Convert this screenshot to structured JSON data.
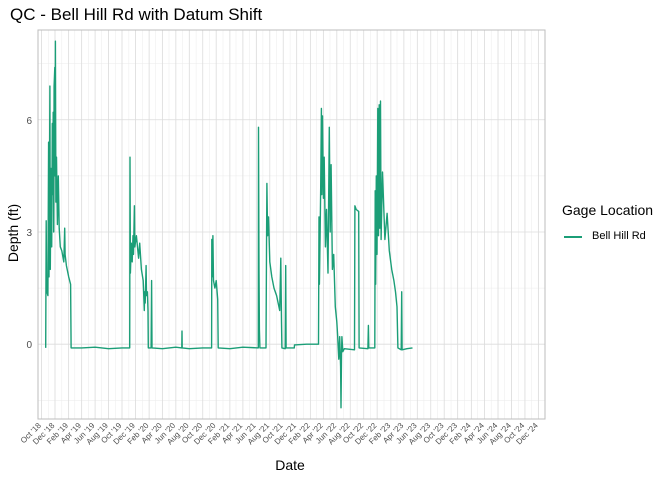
{
  "chart_data": {
    "type": "line",
    "title": "QC - Bell Hill Rd with Datum Shift",
    "xlabel": "Date",
    "ylabel": "Depth (ft)",
    "x_range": [
      "2018-09-15",
      "2024-12-31"
    ],
    "ylim": [
      -2.0,
      8.4
    ],
    "y_ticks": [
      0,
      3,
      6
    ],
    "x_ticks": [
      "Oct '18",
      "Dec '18",
      "Feb '19",
      "Apr '19",
      "Jun '19",
      "Aug '19",
      "Oct '19",
      "Dec '19",
      "Feb '20",
      "Apr '20",
      "Jun '20",
      "Aug '20",
      "Oct '20",
      "Dec '20",
      "Feb '21",
      "Apr '21",
      "Jun '21",
      "Aug '21",
      "Oct '21",
      "Dec '21",
      "Feb '22",
      "Apr '22",
      "Jun '22",
      "Aug '22",
      "Oct '22",
      "Dec '22",
      "Feb '23",
      "Apr '23",
      "Jun '23",
      "Aug '23",
      "Oct '23",
      "Dec '23",
      "Feb '24",
      "Apr '24",
      "Jun '24",
      "Aug '24",
      "Oct '24",
      "Dec '24"
    ],
    "grid": true,
    "legend": {
      "title": "Gage Location",
      "position": "right"
    },
    "series": [
      {
        "name": "Bell Hill Rd",
        "color": "#1b9e77",
        "points": [
          [
            "2018-10-20",
            -0.1
          ],
          [
            "2018-10-22",
            3.3
          ],
          [
            "2018-10-24",
            1.6
          ],
          [
            "2018-10-26",
            1.4
          ],
          [
            "2018-10-30",
            1.3
          ],
          [
            "2018-11-02",
            5.4
          ],
          [
            "2018-11-04",
            1.8
          ],
          [
            "2018-11-06",
            4.5
          ],
          [
            "2018-11-08",
            6.9
          ],
          [
            "2018-11-10",
            2.0
          ],
          [
            "2018-11-13",
            4.7
          ],
          [
            "2018-11-16",
            2.6
          ],
          [
            "2018-11-19",
            5.9
          ],
          [
            "2018-11-21",
            4.0
          ],
          [
            "2018-11-23",
            6.2
          ],
          [
            "2018-11-25",
            3.0
          ],
          [
            "2018-11-27",
            6.9
          ],
          [
            "2018-11-30",
            7.4
          ],
          [
            "2018-12-01",
            4.5
          ],
          [
            "2018-12-03",
            8.1
          ],
          [
            "2018-12-05",
            3.8
          ],
          [
            "2018-12-08",
            5.0
          ],
          [
            "2018-12-12",
            3.2
          ],
          [
            "2018-12-16",
            4.5
          ],
          [
            "2018-12-20",
            3.1
          ],
          [
            "2018-12-25",
            2.6
          ],
          [
            "2019-01-01",
            2.5
          ],
          [
            "2019-01-10",
            2.2
          ],
          [
            "2019-01-14",
            3.1
          ],
          [
            "2019-01-16",
            2.4
          ],
          [
            "2019-01-22",
            2.1
          ],
          [
            "2019-02-01",
            1.8
          ],
          [
            "2019-02-10",
            1.6
          ],
          [
            "2019-02-12",
            -0.1
          ],
          [
            "2019-04-01",
            -0.1
          ],
          [
            "2019-06-01",
            -0.08
          ],
          [
            "2019-08-01",
            -0.12
          ],
          [
            "2019-10-01",
            -0.1
          ],
          [
            "2019-11-05",
            -0.1
          ],
          [
            "2019-11-06",
            5.0
          ],
          [
            "2019-11-08",
            1.9
          ],
          [
            "2019-11-12",
            2.7
          ],
          [
            "2019-11-16",
            2.2
          ],
          [
            "2019-11-20",
            2.9
          ],
          [
            "2019-11-22",
            2.4
          ],
          [
            "2019-11-26",
            3.7
          ],
          [
            "2019-11-28",
            2.6
          ],
          [
            "2019-12-05",
            2.9
          ],
          [
            "2019-12-15",
            2.3
          ],
          [
            "2019-12-20",
            2.7
          ],
          [
            "2019-12-28",
            2.0
          ],
          [
            "2020-01-05",
            1.7
          ],
          [
            "2020-01-10",
            0.9
          ],
          [
            "2020-01-12",
            1.4
          ],
          [
            "2020-01-14",
            1.1
          ],
          [
            "2020-01-18",
            2.1
          ],
          [
            "2020-01-20",
            1.3
          ],
          [
            "2020-01-24",
            1.4
          ],
          [
            "2020-01-27",
            0.9
          ],
          [
            "2020-01-28",
            -0.1
          ],
          [
            "2020-02-10",
            -0.1
          ],
          [
            "2020-02-12",
            1.7
          ],
          [
            "2020-02-14",
            -0.1
          ],
          [
            "2020-04-01",
            -0.12
          ],
          [
            "2020-06-01",
            -0.08
          ],
          [
            "2020-06-28",
            -0.1
          ],
          [
            "2020-06-29",
            0.35
          ],
          [
            "2020-06-30",
            -0.1
          ],
          [
            "2020-08-01",
            -0.12
          ],
          [
            "2020-10-01",
            -0.1
          ],
          [
            "2020-11-10",
            -0.1
          ],
          [
            "2020-11-11",
            2.8
          ],
          [
            "2020-11-13",
            1.8
          ],
          [
            "2020-11-16",
            2.9
          ],
          [
            "2020-11-19",
            1.7
          ],
          [
            "2020-11-25",
            1.5
          ],
          [
            "2020-12-01",
            1.7
          ],
          [
            "2020-12-08",
            1.2
          ],
          [
            "2020-12-10",
            -0.1
          ],
          [
            "2021-02-01",
            -0.12
          ],
          [
            "2021-04-01",
            -0.08
          ],
          [
            "2021-06-10",
            -0.1
          ],
          [
            "2021-06-11",
            5.8
          ],
          [
            "2021-06-13",
            2.0
          ],
          [
            "2021-06-15",
            0.4
          ],
          [
            "2021-06-17",
            -0.1
          ],
          [
            "2021-07-15",
            -0.1
          ],
          [
            "2021-07-17",
            2.5
          ],
          [
            "2021-07-19",
            4.3
          ],
          [
            "2021-07-22",
            2.9
          ],
          [
            "2021-07-26",
            3.4
          ],
          [
            "2021-08-01",
            2.2
          ],
          [
            "2021-08-10",
            1.8
          ],
          [
            "2021-08-20",
            1.5
          ],
          [
            "2021-09-01",
            1.3
          ],
          [
            "2021-09-15",
            0.9
          ],
          [
            "2021-09-20",
            2.3
          ],
          [
            "2021-09-23",
            0.6
          ],
          [
            "2021-09-25",
            -0.1
          ],
          [
            "2021-10-10",
            -0.12
          ],
          [
            "2021-10-12",
            2.1
          ],
          [
            "2021-10-14",
            -0.1
          ],
          [
            "2021-11-20",
            -0.1
          ],
          [
            "2021-11-21",
            -0.02
          ],
          [
            "2022-01-15",
            0.0
          ],
          [
            "2022-03-10",
            0.0
          ],
          [
            "2022-03-12",
            3.4
          ],
          [
            "2022-03-14",
            1.6
          ],
          [
            "2022-03-17",
            2.9
          ],
          [
            "2022-03-20",
            4.2
          ],
          [
            "2022-03-23",
            6.3
          ],
          [
            "2022-03-25",
            4.0
          ],
          [
            "2022-03-28",
            6.1
          ],
          [
            "2022-04-01",
            3.9
          ],
          [
            "2022-04-05",
            5.0
          ],
          [
            "2022-04-10",
            2.6
          ],
          [
            "2022-04-15",
            3.6
          ],
          [
            "2022-04-22",
            1.9
          ],
          [
            "2022-04-28",
            5.8
          ],
          [
            "2022-05-02",
            3.0
          ],
          [
            "2022-05-06",
            4.8
          ],
          [
            "2022-05-12",
            2.0
          ],
          [
            "2022-05-18",
            2.4
          ],
          [
            "2022-05-25",
            1.0
          ],
          [
            "2022-06-01",
            0.6
          ],
          [
            "2022-06-05",
            0.2
          ],
          [
            "2022-06-10",
            -0.4
          ],
          [
            "2022-06-14",
            0.2
          ],
          [
            "2022-06-18",
            -0.6
          ],
          [
            "2022-06-20",
            -1.7
          ],
          [
            "2022-06-22",
            -0.3
          ],
          [
            "2022-06-24",
            0.2
          ],
          [
            "2022-06-28",
            -0.2
          ],
          [
            "2022-07-05",
            -0.12
          ],
          [
            "2022-08-20",
            -0.15
          ],
          [
            "2022-08-22",
            3.7
          ],
          [
            "2022-08-28",
            3.6
          ],
          [
            "2022-09-08",
            3.55
          ],
          [
            "2022-09-10",
            -0.1
          ],
          [
            "2022-10-20",
            -0.12
          ],
          [
            "2022-10-22",
            0.5
          ],
          [
            "2022-10-24",
            -0.1
          ],
          [
            "2022-11-20",
            -0.1
          ],
          [
            "2022-11-22",
            4.1
          ],
          [
            "2022-11-24",
            1.6
          ],
          [
            "2022-11-27",
            4.5
          ],
          [
            "2022-11-30",
            2.4
          ],
          [
            "2022-12-04",
            6.3
          ],
          [
            "2022-12-07",
            2.9
          ],
          [
            "2022-12-10",
            6.4
          ],
          [
            "2022-12-13",
            3.1
          ],
          [
            "2022-12-16",
            6.5
          ],
          [
            "2022-12-19",
            2.8
          ],
          [
            "2022-12-25",
            4.6
          ],
          [
            "2023-01-05",
            2.8
          ],
          [
            "2023-01-15",
            3.5
          ],
          [
            "2023-01-25",
            2.5
          ],
          [
            "2023-02-05",
            2.0
          ],
          [
            "2023-02-15",
            1.7
          ],
          [
            "2023-02-22",
            1.4
          ],
          [
            "2023-03-01",
            1.0
          ],
          [
            "2023-03-05",
            -0.1
          ],
          [
            "2023-03-20",
            -0.15
          ],
          [
            "2023-03-22",
            1.4
          ],
          [
            "2023-03-24",
            -0.15
          ],
          [
            "2023-04-15",
            -0.12
          ],
          [
            "2023-05-10",
            -0.1
          ]
        ]
      }
    ]
  }
}
